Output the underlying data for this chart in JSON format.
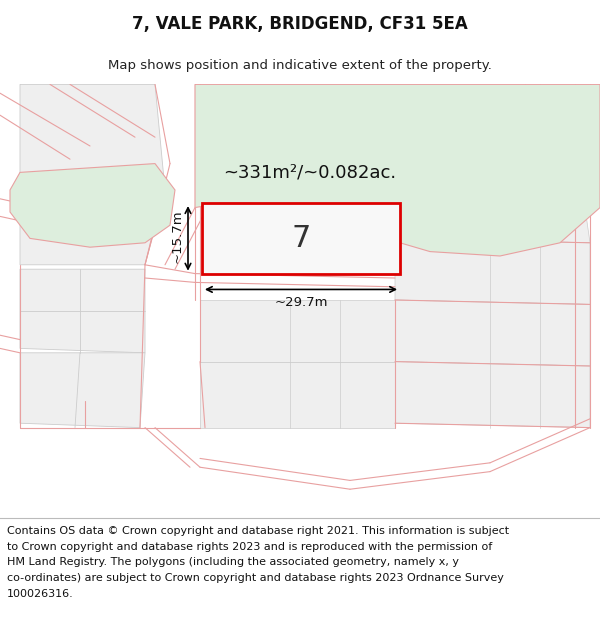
{
  "title": "7, VALE PARK, BRIDGEND, CF31 5EA",
  "subtitle": "Map shows position and indicative extent of the property.",
  "footer_line1": "Contains OS data © Crown copyright and database right 2021. This information is subject",
  "footer_line2": "to Crown copyright and database rights 2023 and is reproduced with the permission of",
  "footer_line3": "HM Land Registry. The polygons (including the associated geometry, namely x, y",
  "footer_line4": "co-ordinates) are subject to Crown copyright and database rights 2023 Ordnance Survey",
  "footer_line5": "100026316.",
  "area_label": "~331m²/~0.082ac.",
  "width_label": "~29.7m",
  "height_label": "~15.7m",
  "plot_number": "7",
  "bg_color": "#ffffff",
  "green_fill": "#ddeedd",
  "red_line": "#e8a0a0",
  "plot_red": "#dd0000",
  "gray_fill": "#efefef",
  "gray_edge": "#cccccc",
  "title_fontsize": 12,
  "subtitle_fontsize": 9.5,
  "footer_fontsize": 8.0
}
